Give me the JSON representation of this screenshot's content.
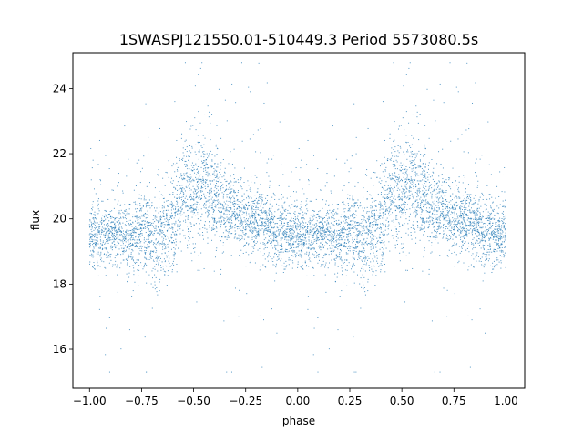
{
  "chart_data": {
    "type": "scatter",
    "title": "1SWASPJ121550.01-510449.3 Period 5573080.5s",
    "xlabel": "phase",
    "ylabel": "flux",
    "xlim": [
      -1.08,
      1.09
    ],
    "ylim": [
      14.8,
      25.1
    ],
    "x_ticks": [
      -1.0,
      -0.75,
      -0.5,
      -0.25,
      0.0,
      0.25,
      0.5,
      0.75,
      1.0
    ],
    "x_tick_labels": [
      "−1.00",
      "−0.75",
      "−0.50",
      "−0.25",
      "0.00",
      "0.25",
      "0.50",
      "0.75",
      "1.00"
    ],
    "y_ticks": [
      16,
      18,
      20,
      22,
      24
    ],
    "y_tick_labels": [
      "16",
      "18",
      "20",
      "22",
      "24"
    ],
    "grid": false,
    "marker_color": "#1f77b4",
    "series": [
      {
        "profile_phase": [
          0.0,
          0.05,
          0.1,
          0.15,
          0.2,
          0.25,
          0.3,
          0.35,
          0.4,
          0.45,
          0.5,
          0.55,
          0.6,
          0.65,
          0.7,
          0.75,
          0.8,
          0.85,
          0.9,
          0.95,
          1.0
        ],
        "profile_median_flux": [
          19.5,
          19.4,
          19.5,
          19.6,
          19.3,
          19.7,
          19.3,
          19.5,
          19.9,
          20.7,
          20.9,
          21.0,
          20.5,
          20.4,
          20.2,
          20.0,
          20.0,
          19.8,
          19.6,
          19.5,
          19.5
        ],
        "profile_scatter": [
          0.45,
          0.45,
          0.45,
          0.5,
          0.55,
          0.6,
          0.65,
          0.7,
          0.75,
          0.8,
          0.9,
          0.8,
          0.7,
          0.6,
          0.55,
          0.5,
          0.5,
          0.5,
          0.5,
          0.45,
          0.45
        ]
      }
    ]
  }
}
